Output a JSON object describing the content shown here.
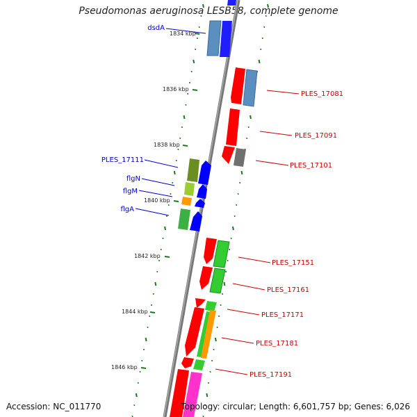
{
  "title": "Pseudomonas aeruginosa LESB58, complete genome",
  "accession": "Accession: NC_011770",
  "topology": "Topology: circular; Length: 6,601,757 bp; Genes: 6,026",
  "colors": {
    "backbone": "#808080",
    "tick": "#1a7a1a",
    "label_blue": "#0000cc",
    "label_red": "#cc0000",
    "cds_red": "#ff0000",
    "cds_blue": "#0000ff",
    "steelblue": "#5b8fc0",
    "green": "#33cc33",
    "orange": "#ff9900",
    "magenta": "#ff33cc",
    "olive": "#6b8e23",
    "gray": "#707070"
  },
  "scale_labels": [
    "1834 kbp",
    "1836 kbp",
    "1838 kbp",
    "1840 kbp",
    "1842 kbp",
    "1844 kbp",
    "1846 kbp"
  ],
  "left_genes": [
    "dsdA",
    "PLES_17111",
    "flgN",
    "flgM",
    "flgA"
  ],
  "right_genes": [
    "PLES_17081",
    "PLES_17091",
    "PLES_17101",
    "PLES_17151",
    "PLES_17161",
    "PLES_17171",
    "PLES_17181",
    "PLES_17191"
  ]
}
